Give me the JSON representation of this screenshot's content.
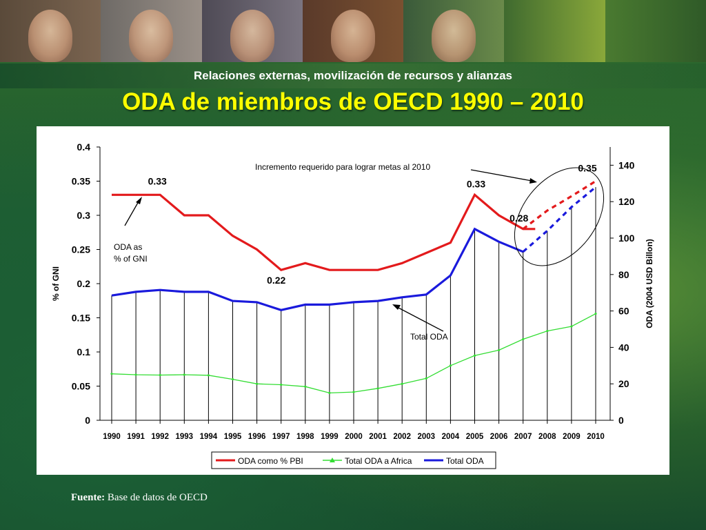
{
  "header": {
    "subtitle": "Relaciones externas, movilización de recursos y alianzas",
    "title": "ODA de miembros de OECD 1990 – 2010"
  },
  "source": {
    "label": "Fuente:",
    "text": "Base de datos de OECD"
  },
  "colors": {
    "gni_line": "#e31a1c",
    "africa_line": "#33dd33",
    "total_line": "#1a1adc",
    "title": "#ffff00"
  },
  "chart_data": {
    "type": "line",
    "categories": [
      "1990",
      "1991",
      "1992",
      "1993",
      "1994",
      "1995",
      "1996",
      "1997",
      "1998",
      "1999",
      "2000",
      "2001",
      "2002",
      "2003",
      "2004",
      "2005",
      "2006",
      "2007",
      "2008",
      "2009",
      "2010"
    ],
    "left_axis": {
      "label": "% of GNI",
      "range": [
        0,
        0.4
      ],
      "ticks": [
        "0",
        "0.05",
        "0.1",
        "0.15",
        "0.2",
        "0.25",
        "0.3",
        "0.35",
        "0.4"
      ]
    },
    "right_axis": {
      "label": "ODA (2004 USD Billon)",
      "range": [
        0,
        150
      ],
      "ticks": [
        "0",
        "20",
        "40",
        "60",
        "80",
        "100",
        "120",
        "140"
      ]
    },
    "series": [
      {
        "name": "ODA como % PBI",
        "axis": "left",
        "x": [
          1990,
          1991,
          1992,
          1993,
          1994,
          1995,
          1996,
          1997,
          1998,
          1999,
          2000,
          2001,
          2002,
          2003,
          2004,
          2005,
          2006,
          2007,
          2007.5
        ],
        "values": [
          0.33,
          0.33,
          0.33,
          0.3,
          0.3,
          0.27,
          0.25,
          0.22,
          0.23,
          0.22,
          0.22,
          0.22,
          0.23,
          0.245,
          0.26,
          0.33,
          0.3,
          0.28,
          0.28
        ],
        "projection": {
          "x": [
            2007,
            2008,
            2009,
            2010
          ],
          "values": [
            0.28,
            0.307,
            0.328,
            0.35
          ]
        }
      },
      {
        "name": "Total ODA a Africa",
        "axis": "right",
        "x": [
          1990,
          1991,
          1992,
          1993,
          1994,
          1995,
          1996,
          1997,
          1998,
          1999,
          2000,
          2001,
          2002,
          2003,
          2004,
          2005,
          2006,
          2007,
          2008,
          2009,
          2010
        ],
        "values": [
          25.5,
          25,
          24.8,
          25,
          24.7,
          22.5,
          20,
          19.5,
          18.5,
          15,
          15.5,
          17.5,
          20,
          23,
          30,
          35.5,
          38.5,
          44.5,
          49,
          51.5,
          58.5
        ]
      },
      {
        "name": "Total ODA",
        "axis": "right",
        "x": [
          1990,
          1991,
          1992,
          1993,
          1994,
          1995,
          1996,
          1997,
          1998,
          1999,
          2000,
          2001,
          2002,
          2003,
          2004,
          2005,
          2006,
          2007
        ],
        "values": [
          68.5,
          70.5,
          71.5,
          70.5,
          70.5,
          65.5,
          64.8,
          60.5,
          63.5,
          63.5,
          64.8,
          65.5,
          67.5,
          69,
          79.5,
          105,
          98,
          92.5
        ],
        "projection": {
          "x": [
            2007,
            2008,
            2009,
            2010
          ],
          "values": [
            92.5,
            104,
            117,
            128
          ]
        }
      }
    ],
    "point_labels": [
      {
        "text": "0.33",
        "year": 1992,
        "value": 0.33
      },
      {
        "text": "0.22",
        "year": 1997,
        "value": 0.22
      },
      {
        "text": "0.33",
        "year": 2005,
        "value": 0.33
      },
      {
        "text": "0.28",
        "year": 2007,
        "value": 0.28
      },
      {
        "text": "0.35",
        "year": 2010,
        "value": 0.35
      }
    ],
    "annotations": {
      "gni": [
        "ODA as",
        "% of GNI"
      ],
      "total": "Total ODA",
      "target": "Incremento requerido para lograr metas al 2010"
    },
    "legend": [
      "ODA como % PBI",
      "Total ODA a Africa",
      "Total ODA"
    ],
    "legend_position": "bottom",
    "grid": "vertical drop lines at each year"
  }
}
